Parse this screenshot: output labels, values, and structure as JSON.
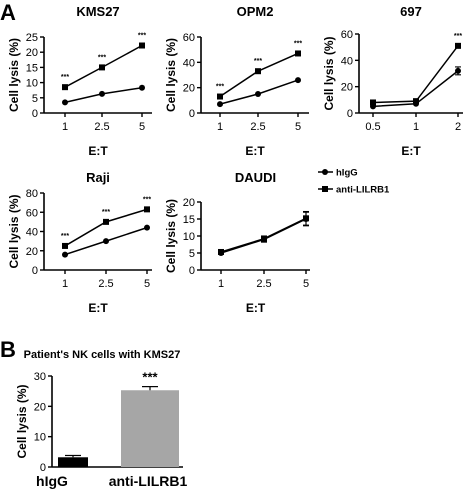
{
  "panels": {
    "a": "A",
    "b": "B"
  },
  "legend": [
    {
      "label": "hIgG",
      "marker": "circle"
    },
    {
      "label": "anti-LILRB1",
      "marker": "square"
    }
  ],
  "chart_data": [
    {
      "id": "kms27",
      "type": "line",
      "title": "KMS27",
      "xlabel": "E:T",
      "ylabel": "Cell lysis (%)",
      "x_ticks": [
        "1",
        "2.5",
        "5"
      ],
      "x_values": [
        1,
        2.5,
        5
      ],
      "ylim": [
        0,
        25
      ],
      "y_ticks": [
        0,
        5,
        10,
        15,
        20,
        25
      ],
      "series": [
        {
          "name": "hIgG",
          "marker": "circle",
          "values": [
            3.5,
            6.3,
            8.3
          ]
        },
        {
          "name": "anti-LILRB1",
          "marker": "square",
          "values": [
            8.5,
            15,
            22.2
          ]
        }
      ],
      "annotations": [
        {
          "x": 1,
          "text": "***"
        },
        {
          "x": 2.5,
          "text": "***"
        },
        {
          "x": 5,
          "text": "***"
        }
      ]
    },
    {
      "id": "opm2",
      "type": "line",
      "title": "OPM2",
      "xlabel": "E:T",
      "ylabel": "Cell lysis (%)",
      "x_ticks": [
        "1",
        "2.5",
        "5"
      ],
      "x_values": [
        1,
        2.5,
        5
      ],
      "ylim": [
        0,
        60
      ],
      "y_ticks": [
        0,
        20,
        40,
        60
      ],
      "series": [
        {
          "name": "hIgG",
          "marker": "circle",
          "values": [
            7,
            15,
            26
          ]
        },
        {
          "name": "anti-LILRB1",
          "marker": "square",
          "values": [
            13,
            33,
            47
          ]
        }
      ],
      "annotations": [
        {
          "x": 1,
          "text": "***"
        },
        {
          "x": 2.5,
          "text": "***"
        },
        {
          "x": 5,
          "text": "***"
        }
      ]
    },
    {
      "id": "697",
      "type": "line",
      "title": "697",
      "xlabel": "E:T",
      "ylabel": "Cell lysis (%)",
      "x_ticks": [
        "0.5",
        "1",
        "2"
      ],
      "x_values": [
        0.5,
        1,
        2
      ],
      "ylim": [
        0,
        60
      ],
      "y_ticks": [
        0,
        20,
        40,
        60
      ],
      "series": [
        {
          "name": "hIgG",
          "marker": "circle",
          "values": [
            5,
            7,
            32
          ],
          "errors": [
            0,
            0,
            3
          ]
        },
        {
          "name": "anti-LILRB1",
          "marker": "square",
          "values": [
            8,
            9,
            51
          ],
          "errors": [
            0,
            0,
            0
          ]
        }
      ],
      "annotations": [
        {
          "x": 2,
          "text": "***"
        }
      ]
    },
    {
      "id": "raji",
      "type": "line",
      "title": "Raji",
      "xlabel": "E:T",
      "ylabel": "Cell lysis (%)",
      "x_ticks": [
        "1",
        "2.5",
        "5"
      ],
      "x_values": [
        1,
        2.5,
        5
      ],
      "ylim": [
        0,
        80
      ],
      "y_ticks": [
        0,
        20,
        40,
        60,
        80
      ],
      "series": [
        {
          "name": "hIgG",
          "marker": "circle",
          "values": [
            16,
            30,
            44
          ]
        },
        {
          "name": "anti-LILRB1",
          "marker": "square",
          "values": [
            25,
            50,
            63
          ]
        }
      ],
      "annotations": [
        {
          "x": 1,
          "text": "***"
        },
        {
          "x": 2.5,
          "text": "***"
        },
        {
          "x": 5,
          "text": "***"
        }
      ]
    },
    {
      "id": "daudi",
      "type": "line",
      "title": "DAUDI",
      "xlabel": "E:T",
      "ylabel": "Cell lysis (%)",
      "x_ticks": [
        "1",
        "2.5",
        "5"
      ],
      "x_values": [
        1,
        2.5,
        5
      ],
      "ylim": [
        0,
        20
      ],
      "y_ticks": [
        0,
        5,
        10,
        15,
        20
      ],
      "series": [
        {
          "name": "hIgG",
          "marker": "circle",
          "values": [
            5,
            9,
            15
          ],
          "errors": [
            0,
            0.8,
            2
          ]
        },
        {
          "name": "anti-LILRB1",
          "marker": "square",
          "values": [
            5.3,
            9.2,
            15.2
          ],
          "errors": [
            0,
            0.8,
            2
          ]
        }
      ],
      "annotations": []
    },
    {
      "id": "patient_nk",
      "type": "bar",
      "title": "Patient's NK cells with KMS27",
      "ylabel": "Cell lysis (%)",
      "categories": [
        "hIgG",
        "anti-LILRB1"
      ],
      "values": [
        3.2,
        25.3
      ],
      "errors": [
        0.6,
        1.2
      ],
      "colors": [
        "#000000",
        "#a6a6a6"
      ],
      "ylim": [
        0,
        30
      ],
      "y_ticks": [
        0,
        10,
        20,
        30
      ],
      "annotations": [
        {
          "category": "anti-LILRB1",
          "text": "***"
        }
      ]
    }
  ]
}
